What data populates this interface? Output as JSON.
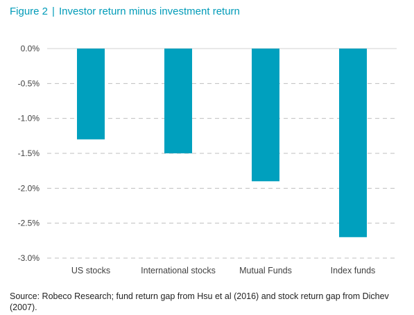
{
  "figure": {
    "label": "Figure 2",
    "separator": "|",
    "title": "Investor return minus investment return"
  },
  "source": "Source: Robeco Research; fund return gap from Hsu et al (2016) and stock return gap from Dichev (2007).",
  "colors": {
    "accent": "#009bb8",
    "bar": "#00a0be",
    "grid": "#bfbfbf",
    "text": "#404040"
  },
  "chart_data": {
    "type": "bar",
    "categories": [
      "US stocks",
      "International stocks",
      "Mutual Funds",
      "Index funds"
    ],
    "values": [
      -1.3,
      -1.5,
      -1.9,
      -2.7
    ],
    "unit": "%",
    "ylim": [
      -3.0,
      0.0
    ],
    "yticks": [
      0.0,
      -0.5,
      -1.0,
      -1.5,
      -2.0,
      -2.5,
      -3.0
    ],
    "ytick_labels": [
      "0.0%",
      "-0.5%",
      "-1.0%",
      "-1.5%",
      "-2.0%",
      "-2.5%",
      "-3.0%"
    ],
    "grid": "dashed horizontal",
    "legend": "none"
  }
}
